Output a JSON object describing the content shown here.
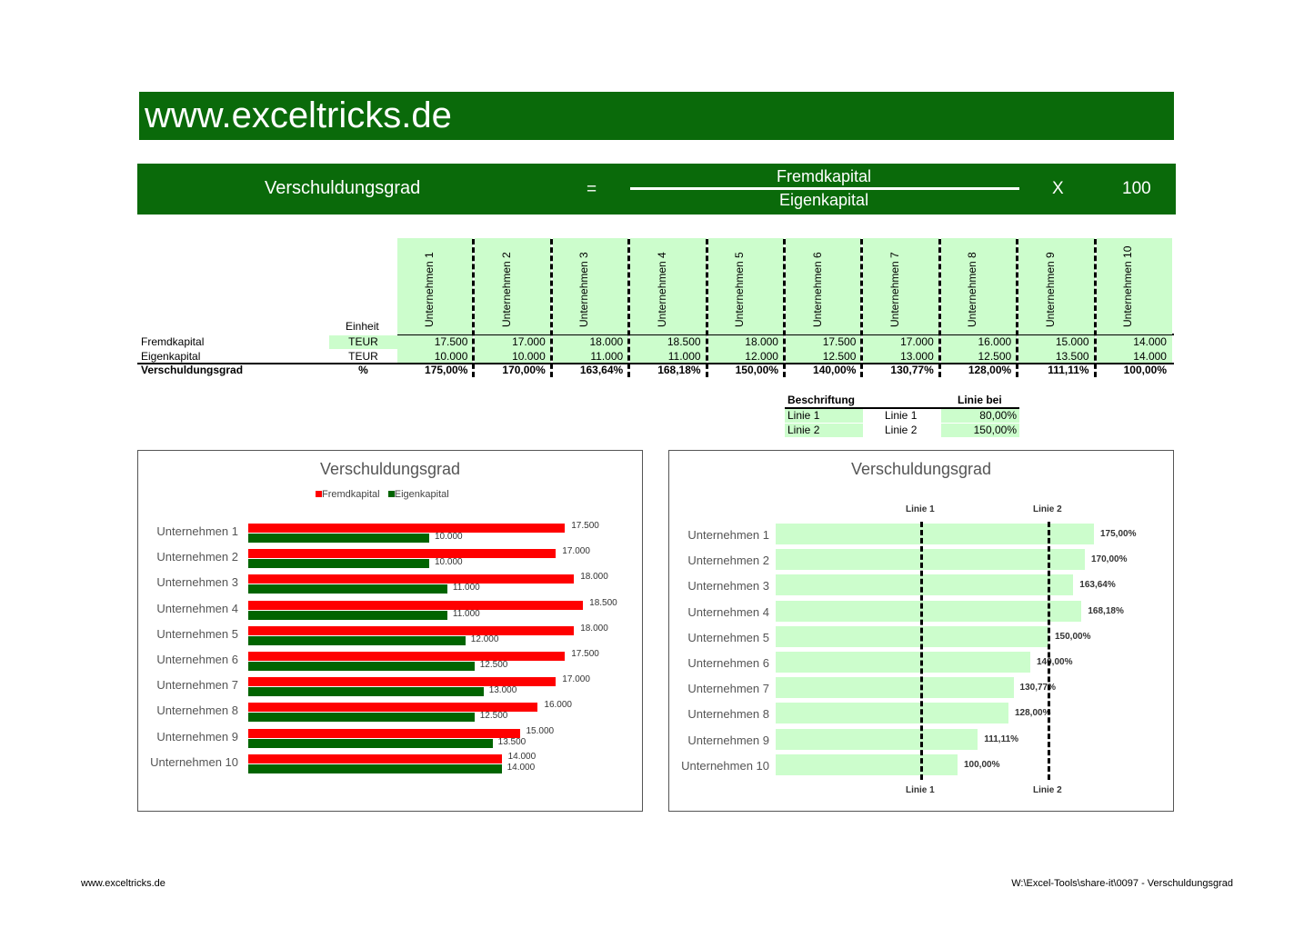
{
  "banner": {
    "title": "www.exceltricks.de"
  },
  "formula": {
    "left": "Verschuldungsgrad",
    "equals": "=",
    "numerator": "Fremdkapital",
    "denominator": "Eigenkapital",
    "times": "X",
    "factor": "100"
  },
  "table": {
    "unit_header": "Einheit",
    "companies": [
      "Unternehmen 1",
      "Unternehmen 2",
      "Unternehmen 3",
      "Unternehmen 4",
      "Unternehmen 5",
      "Unternehmen 6",
      "Unternehmen 7",
      "Unternehmen 8",
      "Unternehmen 9",
      "Unternehmen 10"
    ],
    "rows": [
      {
        "label": "Fremdkapital",
        "unit": "TEUR",
        "values": [
          "17.500",
          "17.000",
          "18.000",
          "18.500",
          "18.000",
          "17.500",
          "17.000",
          "16.000",
          "15.000",
          "14.000"
        ]
      },
      {
        "label": "Eigenkapital",
        "unit": "TEUR",
        "values": [
          "10.000",
          "10.000",
          "11.000",
          "11.000",
          "12.000",
          "12.500",
          "13.000",
          "12.500",
          "13.500",
          "14.000"
        ]
      },
      {
        "label": "Verschuldungsgrad",
        "unit": "%",
        "values": [
          "175,00%",
          "170,00%",
          "163,64%",
          "168,18%",
          "150,00%",
          "140,00%",
          "130,77%",
          "128,00%",
          "111,11%",
          "100,00%"
        ]
      }
    ]
  },
  "lines_table": {
    "header_label": "Beschriftung",
    "header_value": "Linie bei",
    "rows": [
      {
        "label": "Linie 1",
        "name": "Linie 1",
        "value": "80,00%"
      },
      {
        "label": "Linie 2",
        "name": "Linie 2",
        "value": "150,00%"
      }
    ]
  },
  "chart_data": [
    {
      "type": "bar",
      "orientation": "horizontal",
      "title": "Verschuldungsgrad",
      "legend_position": "top",
      "categories": [
        "Unternehmen 1",
        "Unternehmen 2",
        "Unternehmen 3",
        "Unternehmen 4",
        "Unternehmen 5",
        "Unternehmen 6",
        "Unternehmen 7",
        "Unternehmen 8",
        "Unternehmen 9",
        "Unternehmen 10"
      ],
      "xlim": [
        0,
        20000
      ],
      "series": [
        {
          "name": "Fremdkapital",
          "color": "#ff0000",
          "values": [
            17500,
            17000,
            18000,
            18500,
            18000,
            17500,
            17000,
            16000,
            15000,
            14000
          ],
          "labels": [
            "17.500",
            "17.000",
            "18.000",
            "18.500",
            "18.000",
            "17.500",
            "17.000",
            "16.000",
            "15.000",
            "14.000"
          ]
        },
        {
          "name": "Eigenkapital",
          "color": "#006400",
          "values": [
            10000,
            10000,
            11000,
            11000,
            12000,
            12500,
            13000,
            12500,
            13500,
            14000
          ],
          "labels": [
            "10.000",
            "10.000",
            "11.000",
            "11.000",
            "12.000",
            "12.500",
            "13.000",
            "12.500",
            "13.500",
            "14.000"
          ]
        }
      ]
    },
    {
      "type": "bar",
      "orientation": "horizontal",
      "title": "Verschuldungsgrad",
      "categories": [
        "Unternehmen 1",
        "Unternehmen 2",
        "Unternehmen 3",
        "Unternehmen 4",
        "Unternehmen 5",
        "Unternehmen 6",
        "Unternehmen 7",
        "Unternehmen 8",
        "Unternehmen 9",
        "Unternehmen 10"
      ],
      "xlim": [
        0,
        200
      ],
      "series": [
        {
          "name": "Verschuldungsgrad",
          "color": "#ccfdcc",
          "values": [
            175,
            170,
            163.64,
            168.18,
            150,
            140,
            130.77,
            128,
            111.11,
            100
          ],
          "labels": [
            "175,00%",
            "170,00%",
            "163,64%",
            "168,18%",
            "150,00%",
            "140,00%",
            "130,77%",
            "128,00%",
            "111,11%",
            "100,00%"
          ]
        }
      ],
      "reference_lines": [
        {
          "label": "Linie 1",
          "value": 80
        },
        {
          "label": "Linie 2",
          "value": 150
        }
      ]
    }
  ],
  "footer": {
    "left": "www.exceltricks.de",
    "right": "W:\\Excel-Tools\\share-it\\0097 - Verschuldungsgrad"
  }
}
